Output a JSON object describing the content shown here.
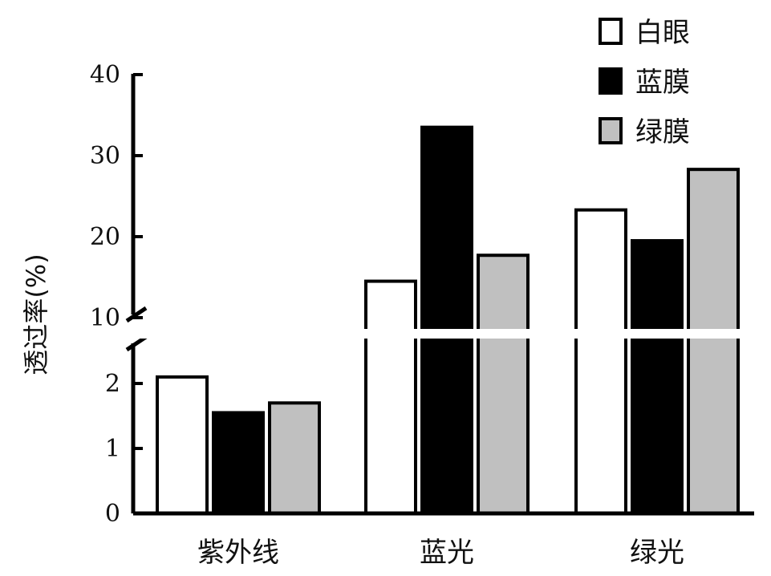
{
  "chart_data": {
    "type": "bar",
    "ylabel": "透过率(%)",
    "categories": [
      "紫外线",
      "蓝光",
      "绿光"
    ],
    "series": [
      {
        "name": "白眼",
        "values": [
          2.1,
          14.5,
          23.3
        ],
        "fill": "#ffffff"
      },
      {
        "name": "蓝膜",
        "values": [
          1.55,
          33.5,
          19.5
        ],
        "fill": "#000000"
      },
      {
        "name": "绿膜",
        "values": [
          1.7,
          17.7,
          28.3
        ],
        "fill": "#c0c0c0"
      }
    ],
    "lower_ticks": [
      "0",
      "1",
      "2"
    ],
    "upper_ticks": [
      "10",
      "20",
      "30",
      "40"
    ],
    "axis_break": true,
    "lower_range": [
      0,
      2.5
    ],
    "upper_range": [
      10,
      40
    ],
    "legend_position": "top-right"
  }
}
